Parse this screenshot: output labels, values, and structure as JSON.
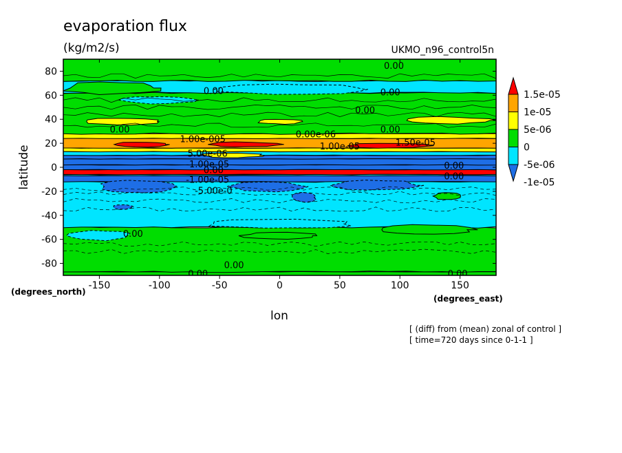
{
  "chart_data": {
    "type": "contour",
    "title": "evaporation flux",
    "units": "(kg/m2/s)",
    "model_label": "UKMO_n96_control5n",
    "xlabel": "lon",
    "ylabel": "latitude",
    "x_unit_label": "(degrees_east)",
    "y_unit_label": "(degrees_north)",
    "xlim": [
      -180,
      180
    ],
    "ylim": [
      -90,
      90
    ],
    "x_ticks": [
      -150,
      -100,
      -50,
      0,
      50,
      100,
      150
    ],
    "x_tick_labels": [
      "-150",
      "-100",
      "-50",
      "0",
      "50",
      "100",
      "150"
    ],
    "y_ticks": [
      -80,
      -60,
      -40,
      -20,
      0,
      20,
      40,
      60,
      80
    ],
    "y_tick_labels": [
      "-80",
      "-60",
      "-40",
      "-20",
      "0",
      "20",
      "40",
      "60",
      "80"
    ],
    "colorbar": {
      "levels": [
        -1e-05,
        -5e-06,
        0,
        5e-06,
        1e-05,
        1.5e-05
      ],
      "labels": [
        "-1e-05",
        "-5e-06",
        "0",
        "5e-06",
        "1e-05",
        "1.5e-05"
      ],
      "colors": [
        "#1e6ee6",
        "#00e5ff",
        "#00dd00",
        "#ffff00",
        "#ffa500",
        "#ff0000"
      ]
    },
    "bands": [
      {
        "lat0": -90,
        "lat1": -87,
        "value": 0
      },
      {
        "lat0": -87,
        "lat1": -50,
        "value": 0
      },
      {
        "lat0": -50,
        "lat1": -12,
        "value": -5e-06
      },
      {
        "lat0": -12,
        "lat1": -7,
        "value": -1e-05
      },
      {
        "lat0": -7,
        "lat1": -6,
        "value": -5e-06
      },
      {
        "lat0": -6,
        "lat1": -2,
        "value": 1.5e-05
      },
      {
        "lat0": -2,
        "lat1": 2,
        "value": -1e-05
      },
      {
        "lat0": 2,
        "lat1": 7,
        "value": -1e-05
      },
      {
        "lat0": 7,
        "lat1": 10,
        "value": -1e-05
      },
      {
        "lat0": 10,
        "lat1": 13,
        "value": -5e-06
      },
      {
        "lat0": 13,
        "lat1": 16,
        "value": 5e-06
      },
      {
        "lat0": 16,
        "lat1": 24,
        "value": 1e-05
      },
      {
        "lat0": 24,
        "lat1": 28,
        "value": 5e-06
      },
      {
        "lat0": 28,
        "lat1": 62,
        "value": 0
      },
      {
        "lat0": 62,
        "lat1": 72,
        "value": -5e-06
      },
      {
        "lat0": 72,
        "lat1": 90,
        "value": 0
      }
    ],
    "patches": [
      {
        "lon": -130,
        "lat": 38,
        "rlon": 30,
        "rlat": 3,
        "value": 5e-06
      },
      {
        "lon": 140,
        "lat": 39,
        "rlon": 35,
        "rlat": 3,
        "value": 5e-06
      },
      {
        "lon": 0,
        "lat": 38,
        "rlon": 18,
        "rlat": 2,
        "value": 5e-06
      },
      {
        "lon": -140,
        "lat": 65,
        "rlon": 25,
        "rlat": 3,
        "value": 0
      },
      {
        "lon": -140,
        "lat": 66,
        "rlon": 40,
        "rlat": 5,
        "value": 0
      },
      {
        "lon": -100,
        "lat": 56,
        "rlon": 30,
        "rlat": 3,
        "value": -5e-06
      },
      {
        "lon": 10,
        "lat": 65,
        "rlon": 60,
        "rlat": 4,
        "value": -5e-06
      },
      {
        "lon": -115,
        "lat": 19,
        "rlon": 22,
        "rlat": 2,
        "value": 1.5e-05
      },
      {
        "lon": -30,
        "lat": 19,
        "rlon": 30,
        "rlat": 2,
        "value": 1.5e-05
      },
      {
        "lon": 90,
        "lat": 18,
        "rlon": 35,
        "rlat": 2,
        "value": 1.5e-05
      },
      {
        "lon": -40,
        "lat": 10,
        "rlon": 25,
        "rlat": 2,
        "value": 5e-06
      },
      {
        "lon": -120,
        "lat": -16,
        "rlon": 30,
        "rlat": 5,
        "value": -1e-05
      },
      {
        "lon": -10,
        "lat": -16,
        "rlon": 30,
        "rlat": 4,
        "value": -1e-05
      },
      {
        "lon": 80,
        "lat": -15,
        "rlon": 35,
        "rlat": 4,
        "value": -1e-05
      },
      {
        "lon": 140,
        "lat": -24,
        "rlon": 12,
        "rlat": 3,
        "value": 0
      },
      {
        "lon": -130,
        "lat": -33,
        "rlon": 8,
        "rlat": 2,
        "value": -1e-05
      },
      {
        "lon": 20,
        "lat": -25,
        "rlon": 10,
        "rlat": 4,
        "value": -1e-05
      },
      {
        "lon": 0,
        "lat": -47,
        "rlon": 60,
        "rlat": 4,
        "value": -5e-06
      },
      {
        "lon": 120,
        "lat": -52,
        "rlon": 40,
        "rlat": 4,
        "value": 0
      },
      {
        "lon": 0,
        "lat": -57,
        "rlon": 30,
        "rlat": 3,
        "value": 0
      },
      {
        "lon": -150,
        "lat": -57,
        "rlon": 25,
        "rlat": 4,
        "value": -5e-06
      }
    ],
    "contour_labels": [
      {
        "lon": 95,
        "lat": 84,
        "text": "0.00"
      },
      {
        "lon": -55,
        "lat": 63,
        "text": "0.00"
      },
      {
        "lon": 92,
        "lat": 62,
        "text": "0.00"
      },
      {
        "lon": 71,
        "lat": 47,
        "text": "0.00"
      },
      {
        "lon": -133,
        "lat": 31,
        "text": "0.00"
      },
      {
        "lon": 92,
        "lat": 31,
        "text": "0.00"
      },
      {
        "lon": 30,
        "lat": 27,
        "text": "0.00e-06"
      },
      {
        "lon": -64,
        "lat": 23,
        "text": "1.00e-005"
      },
      {
        "lon": 50,
        "lat": 17,
        "text": "1.00e-05"
      },
      {
        "lon": 113,
        "lat": 20,
        "text": "1.50e-05"
      },
      {
        "lon": -60,
        "lat": 11,
        "text": "5.00e-06"
      },
      {
        "lon": -60,
        "lat": 2,
        "text": "-1.00e-05"
      },
      {
        "lon": -55,
        "lat": -3,
        "text": "0.00"
      },
      {
        "lon": -60,
        "lat": -11,
        "text": "-1.00e-05"
      },
      {
        "lon": 145,
        "lat": 1,
        "text": "0.00"
      },
      {
        "lon": 145,
        "lat": -8,
        "text": "0.00"
      },
      {
        "lon": -55,
        "lat": -20,
        "text": "-5.00e-0"
      },
      {
        "lon": -122,
        "lat": -56,
        "text": "0.00"
      },
      {
        "lon": -38,
        "lat": -82,
        "text": "0.00"
      },
      {
        "lon": -68,
        "lat": -89,
        "text": "0.00"
      },
      {
        "lon": 148,
        "lat": -89,
        "text": "0.00"
      }
    ],
    "footnotes": [
      "[ (diff) from (mean) zonal of control ]",
      "[ time=720 days since 0-1-1 ]"
    ]
  }
}
